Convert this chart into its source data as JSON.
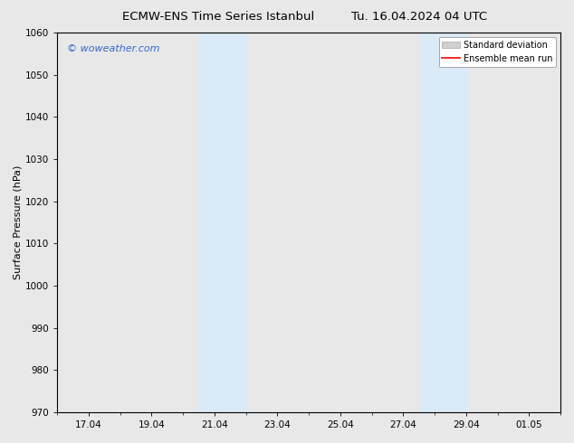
{
  "title": "ECMW-ENS Time Series Istanbul",
  "title2": "Tu. 16.04.2024 04 UTC",
  "ylabel": "Surface Pressure (hPa)",
  "ylim": [
    970,
    1060
  ],
  "yticks": [
    970,
    980,
    990,
    1000,
    1010,
    1020,
    1030,
    1040,
    1050,
    1060
  ],
  "xtick_labels": [
    "17.04",
    "19.04",
    "21.04",
    "23.04",
    "25.04",
    "27.04",
    "29.04",
    "01.05"
  ],
  "xtick_positions": [
    1,
    3,
    5,
    7,
    9,
    11,
    13,
    15
  ],
  "xlim": [
    0,
    16
  ],
  "shaded_bands": [
    {
      "start": 4.5,
      "end": 6.0
    },
    {
      "start": 11.5,
      "end": 13.0
    }
  ],
  "shade_color": "#daeaf7",
  "background_color": "#e8e8e8",
  "plot_bg_color": "#e8e8e8",
  "legend_std_facecolor": "#d0d0d0",
  "legend_std_edgecolor": "#aaaaaa",
  "legend_mean_color": "#ff0000",
  "watermark_text": "© woweather.com",
  "watermark_color": "#3366cc",
  "title_fontsize": 9.5,
  "ylabel_fontsize": 8,
  "tick_fontsize": 7.5,
  "watermark_fontsize": 8,
  "legend_fontsize": 7
}
